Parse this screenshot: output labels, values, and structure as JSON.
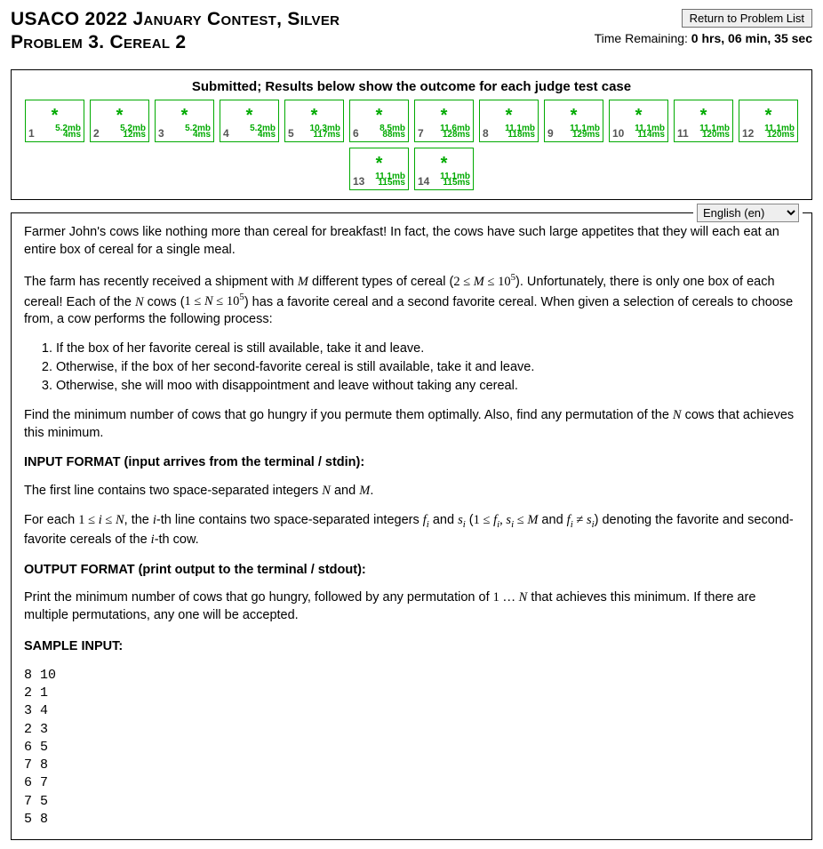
{
  "header": {
    "contest_title": "USACO 2022 January Contest, Silver",
    "problem_title": "Problem 3. Cereal 2",
    "return_button": "Return to Problem List",
    "time_remaining_label": "Time Remaining: ",
    "time_remaining_value": "0 hrs, 06 min, 35 sec"
  },
  "results": {
    "title": "Submitted; Results below show the outcome for each judge test case",
    "star_color": "#00aa00",
    "border_color": "#00aa00",
    "cases": [
      {
        "n": "1",
        "mem": "5.2mb",
        "time": "4ms"
      },
      {
        "n": "2",
        "mem": "5.2mb",
        "time": "12ms"
      },
      {
        "n": "3",
        "mem": "5.2mb",
        "time": "4ms"
      },
      {
        "n": "4",
        "mem": "5.2mb",
        "time": "4ms"
      },
      {
        "n": "5",
        "mem": "10.3mb",
        "time": "117ms"
      },
      {
        "n": "6",
        "mem": "8.5mb",
        "time": "88ms"
      },
      {
        "n": "7",
        "mem": "11.6mb",
        "time": "128ms"
      },
      {
        "n": "8",
        "mem": "11.1mb",
        "time": "118ms"
      },
      {
        "n": "9",
        "mem": "11.1mb",
        "time": "129ms"
      },
      {
        "n": "10",
        "mem": "11.1mb",
        "time": "114ms"
      },
      {
        "n": "11",
        "mem": "11.1mb",
        "time": "120ms"
      },
      {
        "n": "12",
        "mem": "11.1mb",
        "time": "120ms"
      },
      {
        "n": "13",
        "mem": "11.1mb",
        "time": "115ms"
      },
      {
        "n": "14",
        "mem": "11.1mb",
        "time": "115ms"
      }
    ]
  },
  "language": {
    "selected": "English (en)"
  },
  "problem": {
    "p1": "Farmer John's cows like nothing more than cereal for breakfast! In fact, the cows have such large appetites that they will each eat an entire box of cereal for a single meal.",
    "p2_a": "The farm has recently received a shipment with ",
    "p2_b": " different types of cereal (",
    "p2_c": "). Unfortunately, there is only one box of each cereal! Each of the ",
    "p2_d": " cows (",
    "p2_e": ") has a favorite cereal and a second favorite cereal. When given a selection of cereals to choose from, a cow performs the following process:",
    "li1": "If the box of her favorite cereal is still available, take it and leave.",
    "li2": "Otherwise, if the box of her second-favorite cereal is still available, take it and leave.",
    "li3": "Otherwise, she will moo with disappointment and leave without taking any cereal.",
    "p3_a": "Find the minimum number of cows that go hungry if you permute them optimally. Also, find any permutation of the ",
    "p3_b": " cows that achieves this minimum.",
    "input_header": "INPUT FORMAT (input arrives from the terminal / stdin):",
    "p4_a": "The first line contains two space-separated integers ",
    "p4_b": " and ",
    "p4_c": ".",
    "p5_a": "For each ",
    "p5_b": ", the ",
    "p5_c": "-th line contains two space-separated integers ",
    "p5_d": " and ",
    "p5_e": " (",
    "p5_f": " and ",
    "p5_g": ") denoting the favorite and second-favorite cereals of the ",
    "p5_h": "-th cow.",
    "output_header": "OUTPUT FORMAT (print output to the terminal / stdout):",
    "p6_a": "Print the minimum number of cows that go hungry, followed by any permutation of ",
    "p6_b": " that achieves this minimum. If there are multiple permutations, any one will be accepted.",
    "sample_input_header": "SAMPLE INPUT:",
    "sample_input": "8 10\n2 1\n3 4\n2 3\n6 5\n7 8\n6 7\n7 5\n5 8"
  }
}
